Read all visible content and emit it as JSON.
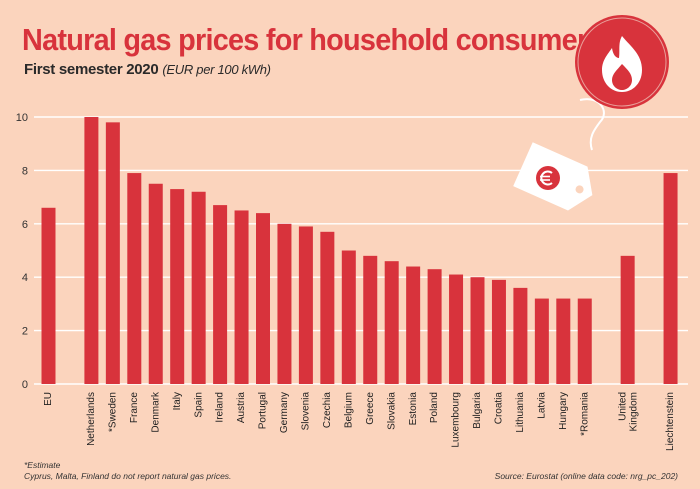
{
  "chart_data": {
    "type": "bar",
    "title": "Natural gas prices for household consumers",
    "subtitle": "First semester 2020",
    "unit_label": "(EUR per 100 kWh)",
    "xlabel": "",
    "ylabel": "",
    "ylim": [
      0,
      10
    ],
    "yticks": [
      0,
      2,
      4,
      6,
      8,
      10
    ],
    "grid": true,
    "categories": [
      "EU",
      "Netherlands",
      "*Sweden",
      "France",
      "Denmark",
      "Italy",
      "Spain",
      "Ireland",
      "Austria",
      "Portugal",
      "Germany",
      "Slovenia",
      "Czechia",
      "Belgium",
      "Greece",
      "Slovakia",
      "Estonia",
      "Poland",
      "Luxembourg",
      "Bulgaria",
      "Croatia",
      "Lithuania",
      "Latvia",
      "Hungary",
      "*Romania",
      "United Kingdom",
      "Liechtenstein"
    ],
    "category_lines": {
      "United Kingdom": [
        "United",
        "Kingdom"
      ]
    },
    "values": [
      6.6,
      10.0,
      9.8,
      7.9,
      7.5,
      7.3,
      7.2,
      6.7,
      6.5,
      6.4,
      6.0,
      5.9,
      5.7,
      5.0,
      4.8,
      4.6,
      4.4,
      4.3,
      4.1,
      4.0,
      3.9,
      3.6,
      3.2,
      3.2,
      3.2,
      4.8,
      7.9
    ],
    "colors": {
      "bar": "#d8333c",
      "background": "#fbd4bd",
      "grid": "#ffffff",
      "title": "#d8333c"
    }
  },
  "footnotes": {
    "estimate": "*Estimate",
    "missing": "Cyprus, Malta, Finland do not report natural gas prices.",
    "source": "Source: Eurostat (online data code: nrg_pc_202)"
  },
  "icons": {
    "badge": "flame-icon",
    "tag": "price-tag-icon",
    "tag_symbol": "euro-plug-icon"
  }
}
